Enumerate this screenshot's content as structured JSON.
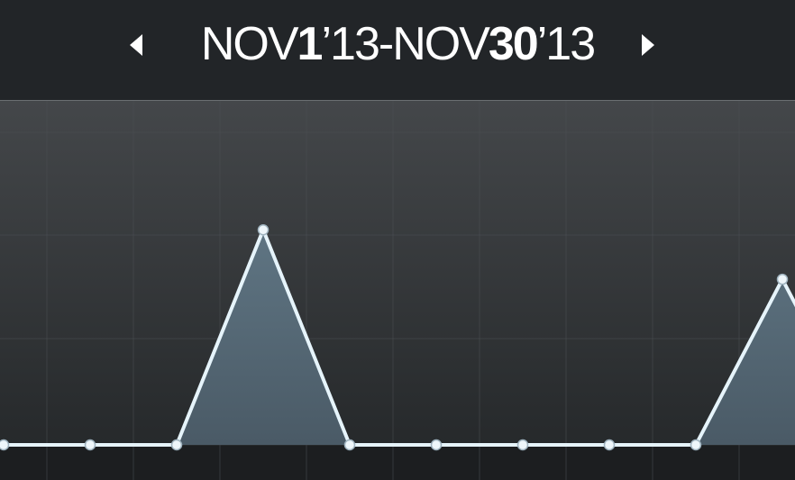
{
  "header": {
    "range": {
      "start_month": "NOV",
      "start_day": "1",
      "start_year": "’13",
      "separator": "-",
      "end_month": "NOV",
      "end_day": "30",
      "end_year": "’13"
    },
    "prev_icon": "triangle-left-icon",
    "next_icon": "triangle-right-icon"
  },
  "colors": {
    "header_bg": "#222528",
    "line": "#e6f4fb",
    "fill": "#52636f",
    "grid": "#4a4e52"
  },
  "chart_data": {
    "type": "area",
    "x": [
      0,
      1,
      2,
      3,
      4,
      5,
      6,
      7,
      8,
      9
    ],
    "values": [
      0,
      0,
      0,
      1,
      0,
      0,
      0,
      0,
      0,
      0.77
    ],
    "ylim": [
      0,
      1.6
    ],
    "grid": true
  }
}
